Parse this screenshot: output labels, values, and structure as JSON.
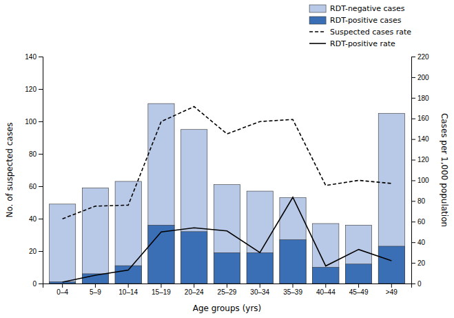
{
  "chart_data": {
    "type": "bar",
    "categories": [
      "0–4",
      "5–9",
      "10–14",
      "15–19",
      "20–24",
      "25–29",
      "30–34",
      "35–39",
      "40–44",
      "45–49",
      ">49"
    ],
    "series": [
      {
        "name": "RDT-negative cases",
        "type": "bar",
        "color": "#b8c9e8",
        "values": [
          49,
          59,
          63,
          111,
          95,
          61,
          57,
          53,
          37,
          36,
          105
        ]
      },
      {
        "name": "RDT-positive cases",
        "type": "bar",
        "color": "#3a6fb5",
        "values": [
          1,
          6,
          11,
          36,
          32,
          19,
          19,
          27,
          10,
          12,
          23
        ]
      },
      {
        "name": "Suspected cases rate",
        "type": "line",
        "axis": "y2",
        "color": "#000000",
        "line_style": "dashed",
        "values": [
          62.7,
          75.0,
          76.0,
          157.0,
          171.5,
          145.0,
          157.0,
          159.0,
          95.0,
          100.0,
          97.0
        ]
      },
      {
        "name": "RDT-positive rate",
        "type": "line",
        "axis": "y2",
        "color": "#000000",
        "line_style": "solid",
        "values": [
          1.3,
          8.0,
          13.0,
          50.0,
          54.0,
          51.0,
          30.0,
          83.6,
          17.0,
          33.0,
          22.0
        ]
      }
    ],
    "xlabel": "Age groups (yrs)",
    "ylabel": "No. of suspected cases",
    "y2label": "Cases per 1,000 population",
    "ylim": [
      0,
      140
    ],
    "yticks": [
      0,
      20,
      40,
      60,
      80,
      100,
      120,
      140
    ],
    "y2lim": [
      0,
      220
    ],
    "y2ticks": [
      0,
      20,
      40,
      60,
      80,
      100,
      120,
      140,
      160,
      180,
      200,
      220
    ],
    "legend": "top-right",
    "grid": false
  }
}
